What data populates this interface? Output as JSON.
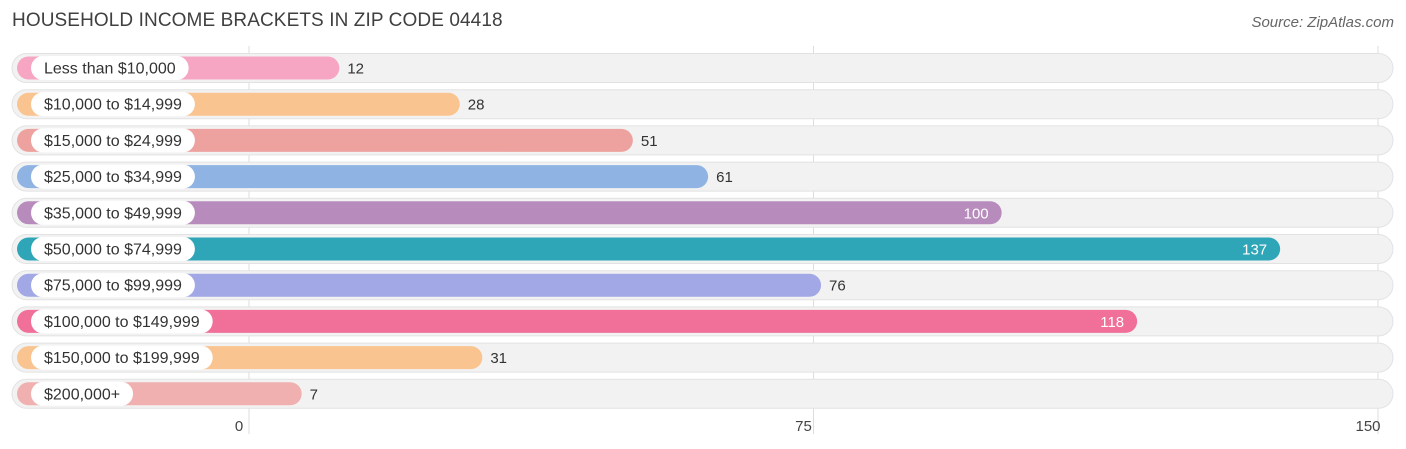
{
  "header": {
    "title": "HOUSEHOLD INCOME BRACKETS IN ZIP CODE 04418",
    "source": "Source: ZipAtlas.com"
  },
  "chart_data": {
    "type": "bar",
    "orientation": "horizontal",
    "title": "HOUSEHOLD INCOME BRACKETS IN ZIP CODE 04418",
    "categories": [
      "Less than $10,000",
      "$10,000 to $14,999",
      "$15,000 to $24,999",
      "$25,000 to $34,999",
      "$35,000 to $49,999",
      "$50,000 to $74,999",
      "$75,000 to $99,999",
      "$100,000 to $149,999",
      "$150,000 to $199,999",
      "$200,000+"
    ],
    "values": [
      12,
      28,
      51,
      61,
      100,
      137,
      76,
      118,
      31,
      7
    ],
    "colors": [
      "#f6a5c2",
      "#f9c48f",
      "#eea29f",
      "#8fb4e3",
      "#b78cbd",
      "#2ea6b8",
      "#a2a7e6",
      "#f07099",
      "#f9c48f",
      "#f0b0b0"
    ],
    "xticks": [
      0,
      75,
      150
    ],
    "xlim": [
      0,
      150
    ],
    "grid": true,
    "value_labels_inside": [
      false,
      false,
      false,
      false,
      true,
      true,
      false,
      true,
      false,
      false
    ]
  }
}
